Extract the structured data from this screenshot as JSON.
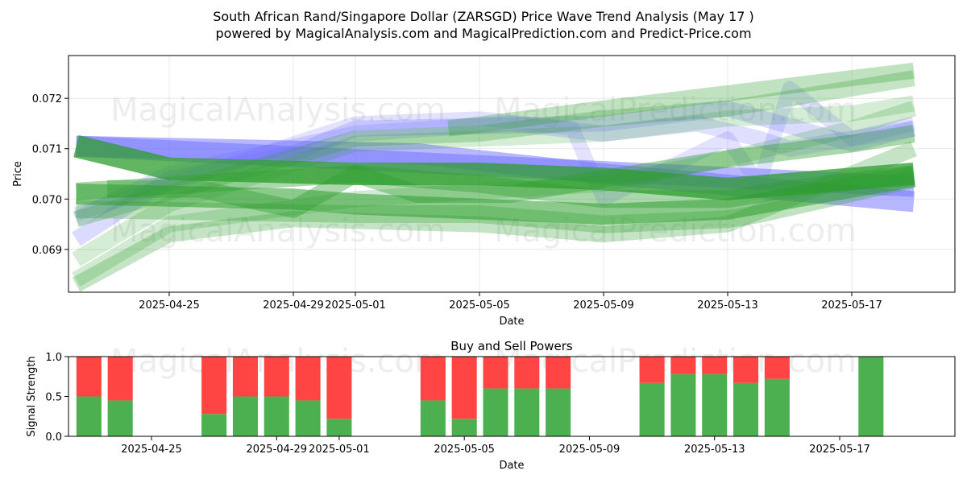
{
  "title_line1": "South African Rand/Singapore Dollar (ZARSGD) Price Wave Trend Analysis (May 17 )",
  "title_line2": "powered by MagicalAnalysis.com and MagicalPrediction.com and Predict-Price.com",
  "watermarks": [
    "MagicalAnalysis.com",
    "MagicalPrediction.com"
  ],
  "colors": {
    "blue": "#6f6fff",
    "green": "#2e9e2e",
    "buy": "#4caf50",
    "sell": "#ff4444"
  },
  "chart_data": [
    {
      "type": "line",
      "title": "",
      "xlabel": "Date",
      "ylabel": "Price",
      "x_ticks": [
        "2025-04-25",
        "2025-04-29",
        "2025-05-01",
        "2025-05-05",
        "2025-05-09",
        "2025-05-13",
        "2025-05-17"
      ],
      "y_ticks": [
        "0.069",
        "0.070",
        "0.071",
        "0.072"
      ],
      "ylim": [
        0.06815,
        0.07285
      ],
      "grid": true,
      "series": [
        {
          "color": "blue",
          "width": 26,
          "opacity": 0.5,
          "x": [
            "2025-04-22",
            "2025-05-19"
          ],
          "y": [
            0.07105,
            0.07025
          ]
        },
        {
          "color": "blue",
          "width": 26,
          "opacity": 0.5,
          "x": [
            "2025-04-22",
            "2025-05-03",
            "2025-05-09",
            "2025-05-19"
          ],
          "y": [
            0.07105,
            0.0709,
            0.0705,
            0.06995
          ]
        },
        {
          "color": "blue",
          "width": 20,
          "opacity": 0.25,
          "x": [
            "2025-04-22",
            "2025-04-25",
            "2025-04-29",
            "2025-05-01",
            "2025-05-05",
            "2025-05-09",
            "2025-05-13",
            "2025-05-17",
            "2025-05-19"
          ],
          "y": [
            0.0692,
            0.0704,
            0.0709,
            0.0714,
            0.07145,
            0.0715,
            0.0718,
            0.0711,
            0.0714
          ]
        },
        {
          "color": "blue",
          "width": 20,
          "opacity": 0.22,
          "x": [
            "2025-04-22",
            "2025-04-25",
            "2025-05-01",
            "2025-05-06",
            "2025-05-09",
            "2025-05-12",
            "2025-05-14",
            "2025-05-15",
            "2025-05-17",
            "2025-05-19"
          ],
          "y": [
            0.0696,
            0.0705,
            0.0713,
            0.0715,
            0.0713,
            0.0715,
            0.0712,
            0.071,
            0.0712,
            0.0714
          ]
        },
        {
          "color": "blue",
          "width": 18,
          "opacity": 0.2,
          "x": [
            "2025-04-22",
            "2025-05-01",
            "2025-05-05",
            "2025-05-08",
            "2025-05-09",
            "2025-05-11",
            "2025-05-13",
            "2025-05-14",
            "2025-05-15",
            "2025-05-17",
            "2025-05-19"
          ],
          "y": [
            0.0697,
            0.0715,
            0.0716,
            0.0714,
            0.07,
            0.0706,
            0.0712,
            0.0703,
            0.0722,
            0.0712,
            0.0715
          ]
        },
        {
          "color": "green",
          "width": 28,
          "opacity": 0.75,
          "x": [
            "2025-04-22",
            "2025-04-25",
            "2025-05-01",
            "2025-05-05",
            "2025-05-09",
            "2025-05-13",
            "2025-05-19"
          ],
          "y": [
            0.07105,
            0.0706,
            0.0705,
            0.0705,
            0.0704,
            0.0702,
            0.0705
          ]
        },
        {
          "color": "green",
          "width": 26,
          "opacity": 0.55,
          "x": [
            "2025-04-22",
            "2025-04-29",
            "2025-05-01",
            "2025-05-05",
            "2025-05-09",
            "2025-05-13",
            "2025-05-19"
          ],
          "y": [
            0.0701,
            0.07,
            0.0699,
            0.0698,
            0.0697,
            0.0698,
            0.07045
          ]
        },
        {
          "color": "green",
          "width": 22,
          "opacity": 0.4,
          "x": [
            "2025-04-22",
            "2025-05-01",
            "2025-05-03",
            "2025-05-06",
            "2025-05-09",
            "2025-05-13",
            "2025-05-17",
            "2025-05-19"
          ],
          "y": [
            0.07015,
            0.0705,
            0.0701,
            0.0701,
            0.0704,
            0.0708,
            0.0711,
            0.0713
          ]
        },
        {
          "color": "green",
          "width": 22,
          "opacity": 0.4,
          "x": [
            "2025-04-23",
            "2025-04-26",
            "2025-04-29",
            "2025-05-01",
            "2025-05-05",
            "2025-05-09",
            "2025-05-13",
            "2025-05-15",
            "2025-05-19"
          ],
          "y": [
            0.0702,
            0.0702,
            0.0698,
            0.0705,
            0.0703,
            0.07,
            0.07,
            0.0702,
            0.0705
          ]
        },
        {
          "color": "green",
          "width": 22,
          "opacity": 0.3,
          "x": [
            "2025-04-22",
            "2025-05-01",
            "2025-05-05",
            "2025-05-09",
            "2025-05-13",
            "2025-05-14",
            "2025-05-19"
          ],
          "y": [
            0.0698,
            0.0697,
            0.0697,
            0.0695,
            0.0696,
            0.0697,
            0.0704
          ]
        },
        {
          "color": "green",
          "width": 20,
          "opacity": 0.28,
          "x": [
            "2025-04-22",
            "2025-04-25",
            "2025-04-29",
            "2025-05-05",
            "2025-05-09",
            "2025-05-13",
            "2025-05-19"
          ],
          "y": [
            0.0683,
            0.0693,
            0.0696,
            0.0695,
            0.0693,
            0.0695,
            0.071
          ]
        },
        {
          "color": "green",
          "width": 20,
          "opacity": 0.22,
          "x": [
            "2025-04-22",
            "2025-04-25",
            "2025-05-01",
            "2025-05-09",
            "2025-05-13",
            "2025-05-17",
            "2025-05-19"
          ],
          "y": [
            0.0684,
            0.0695,
            0.07,
            0.0703,
            0.0708,
            0.0714,
            0.0718
          ]
        },
        {
          "color": "green",
          "width": 20,
          "opacity": 0.2,
          "x": [
            "2025-04-22",
            "2025-04-25",
            "2025-05-01",
            "2025-05-09",
            "2025-05-13",
            "2025-05-17",
            "2025-05-19"
          ],
          "y": [
            0.0688,
            0.0699,
            0.0711,
            0.0713,
            0.0716,
            0.0717,
            0.0719
          ]
        },
        {
          "color": "green",
          "width": 20,
          "opacity": 0.28,
          "x": [
            "2025-04-22",
            "2025-05-01",
            "2025-05-05",
            "2025-05-09",
            "2025-05-13",
            "2025-05-17",
            "2025-05-19"
          ],
          "y": [
            0.0696,
            0.0712,
            0.0713,
            0.0716,
            0.0718,
            0.0722,
            0.0724
          ]
        },
        {
          "color": "green",
          "width": 20,
          "opacity": 0.3,
          "x": [
            "2025-05-04",
            "2025-05-09",
            "2025-05-13",
            "2025-05-17",
            "2025-05-19"
          ],
          "y": [
            0.0714,
            0.0718,
            0.0721,
            0.0724,
            0.07255
          ]
        }
      ]
    },
    {
      "type": "bar",
      "stacked": true,
      "title": "Buy and Sell Powers",
      "xlabel": "Date",
      "ylabel": "Signal Strength",
      "ylim": [
        0,
        1
      ],
      "y_ticks": [
        "0.0",
        "0.5",
        "1.0"
      ],
      "x_ticks": [
        "2025-04-25",
        "2025-04-29",
        "2025-05-01",
        "2025-05-05",
        "2025-05-09",
        "2025-05-13",
        "2025-05-17"
      ],
      "series": [
        {
          "name": "buy",
          "color": "buy",
          "x": [
            "2025-04-23",
            "2025-04-24",
            "2025-04-27",
            "2025-04-28",
            "2025-04-29",
            "2025-04-30",
            "2025-05-01",
            "2025-05-04",
            "2025-05-05",
            "2025-05-06",
            "2025-05-07",
            "2025-05-08",
            "2025-05-11",
            "2025-05-12",
            "2025-05-13",
            "2025-05-14",
            "2025-05-15",
            "2025-05-18"
          ],
          "values": [
            0.5,
            0.45,
            0.28,
            0.5,
            0.5,
            0.45,
            0.22,
            0.45,
            0.22,
            0.6,
            0.6,
            0.6,
            0.67,
            0.78,
            0.78,
            0.67,
            0.72,
            1.0
          ]
        },
        {
          "name": "sell",
          "color": "sell",
          "x": [
            "2025-04-23",
            "2025-04-24",
            "2025-04-27",
            "2025-04-28",
            "2025-04-29",
            "2025-04-30",
            "2025-05-01",
            "2025-05-04",
            "2025-05-05",
            "2025-05-06",
            "2025-05-07",
            "2025-05-08",
            "2025-05-11",
            "2025-05-12",
            "2025-05-13",
            "2025-05-14",
            "2025-05-15",
            "2025-05-18"
          ],
          "values": [
            0.5,
            0.55,
            0.72,
            0.5,
            0.5,
            0.55,
            0.78,
            0.55,
            0.78,
            0.4,
            0.4,
            0.4,
            0.33,
            0.22,
            0.22,
            0.33,
            0.28,
            0.0
          ]
        }
      ]
    }
  ]
}
